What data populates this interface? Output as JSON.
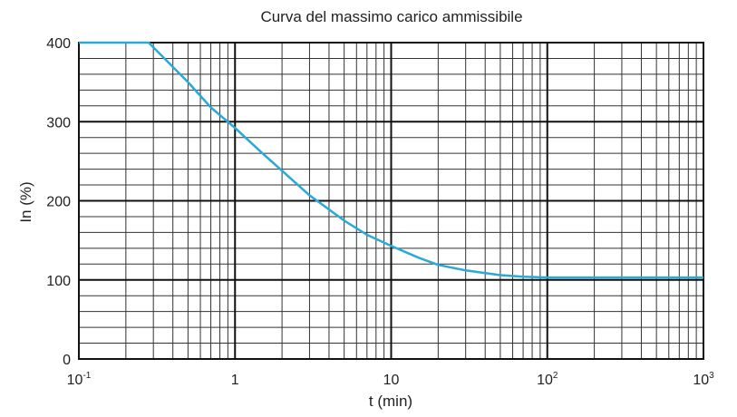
{
  "chart_data": {
    "type": "line",
    "title": "Curva del massimo carico ammissibile",
    "xlabel": "t (min)",
    "ylabel": "In (%)",
    "xscale": "log",
    "xlim": [
      0.1,
      1000
    ],
    "ylim": [
      0,
      400
    ],
    "grid": true,
    "x_tick_labels": [
      {
        "value": 0.1,
        "base": "10",
        "exp": "-1"
      },
      {
        "value": 1,
        "base": "1",
        "exp": ""
      },
      {
        "value": 10,
        "base": "10",
        "exp": ""
      },
      {
        "value": 100,
        "base": "10",
        "exp": "2"
      },
      {
        "value": 1000,
        "base": "10",
        "exp": "3"
      }
    ],
    "y_tick_labels": [
      {
        "value": 0,
        "label": "0"
      },
      {
        "value": 100,
        "label": "100"
      },
      {
        "value": 200,
        "label": "200"
      },
      {
        "value": 300,
        "label": "300"
      },
      {
        "value": 400,
        "label": "400"
      }
    ],
    "series": [
      {
        "color": "#29a9d6",
        "points": [
          [
            0.1,
            400
          ],
          [
            0.28,
            400
          ],
          [
            0.5,
            350
          ],
          [
            0.7,
            318
          ],
          [
            1.0,
            292
          ],
          [
            1.5,
            260
          ],
          [
            2.0,
            238
          ],
          [
            3.0,
            207
          ],
          [
            5.0,
            175
          ],
          [
            7.0,
            157
          ],
          [
            10,
            143
          ],
          [
            15,
            128
          ],
          [
            20,
            119
          ],
          [
            30,
            112
          ],
          [
            50,
            106
          ],
          [
            70,
            104
          ],
          [
            100,
            103
          ],
          [
            1000,
            103
          ]
        ]
      }
    ]
  }
}
